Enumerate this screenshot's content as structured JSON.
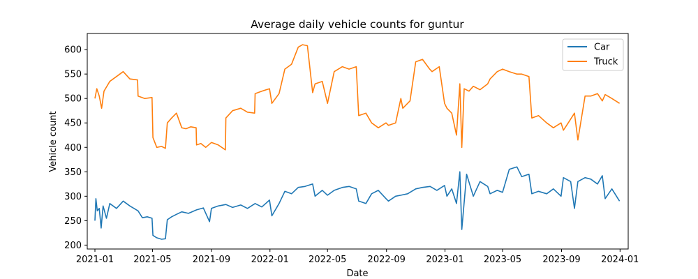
{
  "chart_data": {
    "type": "line",
    "title": "Average daily vehicle counts for guntur",
    "xlabel": "Date",
    "ylabel": "Vehicle count",
    "x_range": [
      "2020-12-16",
      "2024-01-18"
    ],
    "ylim": [
      192,
      633
    ],
    "x_ticks": [
      "2021-01",
      "2021-05",
      "2021-09",
      "2022-01",
      "2022-05",
      "2022-09",
      "2023-01",
      "2023-05",
      "2023-09",
      "2024-01"
    ],
    "y_ticks": [
      200,
      250,
      300,
      350,
      400,
      450,
      500,
      550,
      600
    ],
    "legend": {
      "position": "top-right",
      "entries": [
        "Car",
        "Truck"
      ]
    },
    "grid": false,
    "series": [
      {
        "name": "Car",
        "color": "#1f77b4",
        "x": [
          "2021-01-01",
          "2021-01-03",
          "2021-01-06",
          "2021-01-10",
          "2021-01-14",
          "2021-01-18",
          "2021-01-25",
          "2021-02-01",
          "2021-02-15",
          "2021-03-01",
          "2021-03-15",
          "2021-04-01",
          "2021-04-10",
          "2021-04-20",
          "2021-04-30",
          "2021-05-02",
          "2021-05-10",
          "2021-05-20",
          "2021-05-28",
          "2021-06-01",
          "2021-06-10",
          "2021-06-20",
          "2021-07-01",
          "2021-07-15",
          "2021-08-01",
          "2021-08-15",
          "2021-08-28",
          "2021-09-01",
          "2021-09-15",
          "2021-10-01",
          "2021-10-15",
          "2021-11-01",
          "2021-11-15",
          "2021-12-01",
          "2021-12-15",
          "2021-12-31",
          "2022-01-05",
          "2022-01-20",
          "2022-02-01",
          "2022-02-15",
          "2022-03-01",
          "2022-03-15",
          "2022-03-31",
          "2022-04-05",
          "2022-04-20",
          "2022-05-01",
          "2022-05-15",
          "2022-06-01",
          "2022-06-15",
          "2022-06-30",
          "2022-07-05",
          "2022-07-20",
          "2022-08-01",
          "2022-08-15",
          "2022-08-31",
          "2022-09-05",
          "2022-09-20",
          "2022-10-01",
          "2022-10-15",
          "2022-11-01",
          "2022-11-15",
          "2022-12-01",
          "2022-12-15",
          "2022-12-31",
          "2023-01-05",
          "2023-01-15",
          "2023-01-25",
          "2023-02-01",
          "2023-02-05",
          "2023-02-15",
          "2023-03-01",
          "2023-03-15",
          "2023-03-31",
          "2023-04-05",
          "2023-04-20",
          "2023-05-01",
          "2023-05-15",
          "2023-05-31",
          "2023-06-10",
          "2023-06-25",
          "2023-07-01",
          "2023-07-15",
          "2023-08-01",
          "2023-08-15",
          "2023-08-31",
          "2023-09-05",
          "2023-09-20",
          "2023-09-28",
          "2023-10-05",
          "2023-10-20",
          "2023-11-01",
          "2023-11-15",
          "2023-11-25",
          "2023-12-01",
          "2023-12-15",
          "2023-12-31"
        ],
        "values": [
          250,
          295,
          270,
          275,
          235,
          280,
          255,
          285,
          275,
          290,
          280,
          270,
          256,
          258,
          255,
          220,
          215,
          212,
          213,
          252,
          258,
          263,
          268,
          265,
          272,
          276,
          248,
          275,
          280,
          283,
          277,
          282,
          275,
          285,
          278,
          292,
          260,
          285,
          310,
          305,
          318,
          320,
          325,
          300,
          312,
          302,
          312,
          318,
          320,
          315,
          290,
          285,
          305,
          312,
          295,
          290,
          300,
          302,
          305,
          315,
          318,
          320,
          312,
          322,
          300,
          315,
          285,
          350,
          232,
          345,
          300,
          330,
          320,
          305,
          312,
          308,
          355,
          360,
          340,
          345,
          305,
          310,
          305,
          315,
          300,
          338,
          330,
          275,
          330,
          338,
          335,
          325,
          342,
          295,
          315,
          290
        ]
      },
      {
        "name": "Truck",
        "color": "#ff7f0e",
        "x": [
          "2021-01-01",
          "2021-01-05",
          "2021-01-10",
          "2021-01-15",
          "2021-01-20",
          "2021-02-01",
          "2021-02-15",
          "2021-03-01",
          "2021-03-15",
          "2021-03-31",
          "2021-04-01",
          "2021-04-15",
          "2021-04-30",
          "2021-05-02",
          "2021-05-10",
          "2021-05-20",
          "2021-05-28",
          "2021-06-01",
          "2021-06-10",
          "2021-06-20",
          "2021-07-01",
          "2021-07-10",
          "2021-07-20",
          "2021-07-31",
          "2021-08-01",
          "2021-08-10",
          "2021-08-20",
          "2021-09-01",
          "2021-09-15",
          "2021-09-30",
          "2021-10-01",
          "2021-10-15",
          "2021-11-01",
          "2021-11-15",
          "2021-11-30",
          "2021-12-01",
          "2021-12-15",
          "2021-12-31",
          "2022-01-05",
          "2022-01-20",
          "2022-02-01",
          "2022-02-15",
          "2022-03-01",
          "2022-03-10",
          "2022-03-20",
          "2022-03-31",
          "2022-04-05",
          "2022-04-20",
          "2022-05-01",
          "2022-05-15",
          "2022-06-01",
          "2022-06-15",
          "2022-06-30",
          "2022-07-05",
          "2022-07-20",
          "2022-08-01",
          "2022-08-15",
          "2022-08-31",
          "2022-09-05",
          "2022-09-20",
          "2022-10-01",
          "2022-10-05",
          "2022-10-20",
          "2022-11-01",
          "2022-11-15",
          "2022-11-30",
          "2022-12-05",
          "2022-12-20",
          "2022-12-31",
          "2023-01-05",
          "2023-01-15",
          "2023-01-25",
          "2023-02-01",
          "2023-02-05",
          "2023-02-10",
          "2023-02-20",
          "2023-03-01",
          "2023-03-15",
          "2023-03-31",
          "2023-04-05",
          "2023-04-20",
          "2023-05-01",
          "2023-05-15",
          "2023-05-31",
          "2023-06-10",
          "2023-06-25",
          "2023-07-01",
          "2023-07-15",
          "2023-08-01",
          "2023-08-15",
          "2023-08-31",
          "2023-09-05",
          "2023-09-15",
          "2023-09-28",
          "2023-10-05",
          "2023-10-20",
          "2023-11-01",
          "2023-11-15",
          "2023-11-25",
          "2023-12-01",
          "2023-12-15",
          "2023-12-31"
        ],
        "values": [
          500,
          520,
          505,
          480,
          515,
          535,
          545,
          555,
          540,
          538,
          505,
          500,
          502,
          420,
          400,
          402,
          398,
          450,
          460,
          470,
          440,
          438,
          442,
          440,
          405,
          408,
          400,
          410,
          405,
          395,
          460,
          475,
          480,
          472,
          470,
          510,
          515,
          520,
          490,
          510,
          560,
          570,
          605,
          610,
          608,
          512,
          530,
          535,
          490,
          555,
          565,
          560,
          565,
          465,
          470,
          450,
          440,
          450,
          445,
          450,
          500,
          480,
          495,
          575,
          580,
          560,
          555,
          565,
          490,
          480,
          470,
          425,
          530,
          400,
          520,
          515,
          525,
          518,
          530,
          540,
          555,
          560,
          555,
          550,
          550,
          545,
          460,
          465,
          450,
          440,
          450,
          435,
          450,
          470,
          415,
          505,
          505,
          510,
          495,
          508,
          500,
          490
        ]
      }
    ]
  }
}
